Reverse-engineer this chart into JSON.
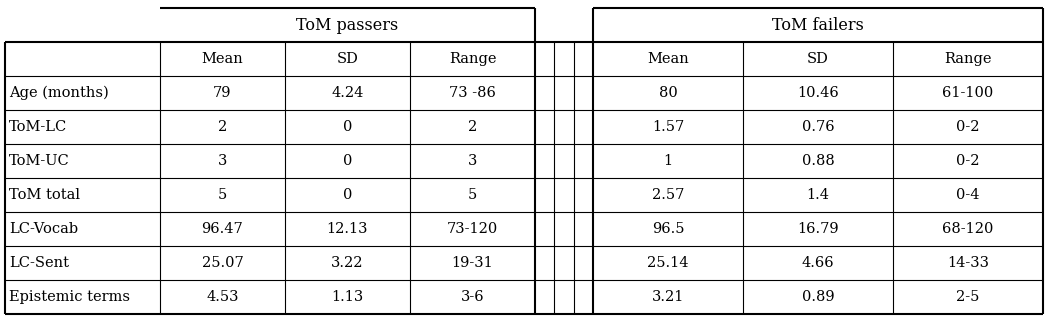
{
  "row_labels": [
    "Age (months)",
    "ToM-LC",
    "ToM-UC",
    "ToM total",
    "LC-Vocab",
    "LC-Sent",
    "Epistemic terms"
  ],
  "passers_mean": [
    "79",
    "2",
    "3",
    "5",
    "96.47",
    "25.07",
    "4.53"
  ],
  "passers_sd": [
    "4.24",
    "0",
    "0",
    "0",
    "12.13",
    "3.22",
    "1.13"
  ],
  "passers_range": [
    "73 -86",
    "2",
    "3",
    "5",
    "73-120",
    "19-31",
    "3-6"
  ],
  "failers_mean": [
    "80",
    "1.57",
    "1",
    "2.57",
    "96.5",
    "25.14",
    "3.21"
  ],
  "failers_sd": [
    "10.46",
    "0.76",
    "0.88",
    "1.4",
    "16.79",
    "4.66",
    "0.89"
  ],
  "failers_range": [
    "61-100",
    "0-2",
    "0-2",
    "0-4",
    "68-120",
    "14-33",
    "2-5"
  ],
  "col_header1": "ToM passers",
  "col_header2": "ToM failers",
  "sub_headers": [
    "Mean",
    "SD",
    "Range"
  ],
  "background_color": "#ffffff",
  "line_color": "#000000",
  "text_color": "#000000",
  "font_size": 10.5,
  "header_font_size": 11.5,
  "fig_width": 10.58,
  "fig_height": 3.2,
  "dpi": 100
}
